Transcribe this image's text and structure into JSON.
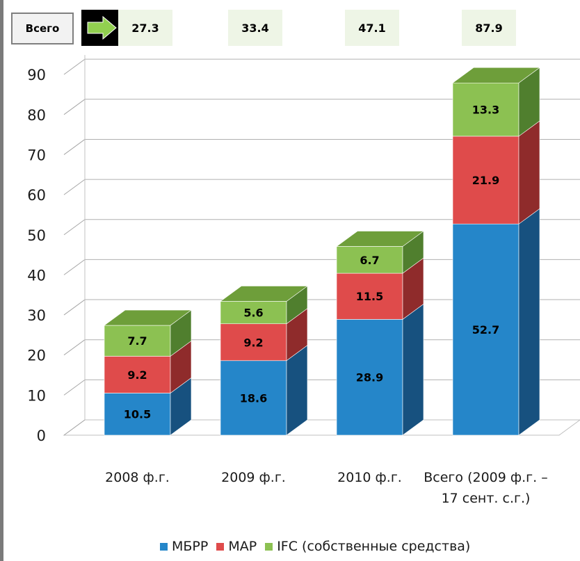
{
  "totals_row": {
    "label": "Всего",
    "values": [
      "27.3",
      "33.4",
      "47.1",
      "87.9"
    ]
  },
  "chart_data": {
    "type": "bar",
    "stacked": true,
    "three_d": true,
    "categories": [
      "2008 ф.г.",
      "2009 ф.г.",
      "2010 ф.г.",
      "Всего (2009 ф.г. – 17 сент. с.г.)"
    ],
    "category_lines": [
      [
        "2008 ф.г."
      ],
      [
        "2009 ф.г."
      ],
      [
        "2010 ф.г."
      ],
      [
        "Всего (2009 ф.г. –",
        "17 сент. с.г.)"
      ]
    ],
    "series": [
      {
        "name": "МБРР",
        "values": [
          10.5,
          18.6,
          28.9,
          52.7
        ],
        "labels": [
          "10.5",
          "18.6",
          "28.9",
          "52.7"
        ],
        "color": "#2586c9",
        "side_color": "#17517f",
        "top_color": "#3a8fce"
      },
      {
        "name": "МАР",
        "values": [
          9.2,
          9.2,
          11.5,
          21.9
        ],
        "labels": [
          "9.2",
          "9.2",
          "11.5",
          "21.9"
        ],
        "color": "#df4b4b",
        "side_color": "#8f2b2b",
        "top_color": "#e05a5a"
      },
      {
        "name": "IFC (собственные средства)",
        "values": [
          7.7,
          5.6,
          6.7,
          13.3
        ],
        "labels": [
          "7.7",
          "5.6",
          "6.7",
          "13.3"
        ],
        "color": "#8cc152",
        "side_color": "#507f2e",
        "top_color": "#6e9e3a"
      }
    ],
    "yticks": [
      "0",
      "10",
      "20",
      "30",
      "40",
      "50",
      "60",
      "70",
      "80",
      "90"
    ],
    "ylim": [
      0,
      90
    ],
    "grid": true,
    "legend_position": "bottom"
  }
}
